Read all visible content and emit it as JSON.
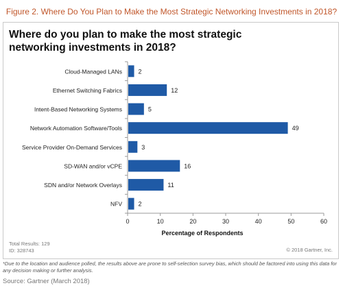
{
  "figure_title": "Figure 2. Where Do You Plan to Make the Most Strategic Networking Investments in 2018?",
  "chart_data": {
    "type": "bar",
    "orientation": "horizontal",
    "title_line1": "Where do you plan to make the most strategic",
    "title_line2": "networking investments in 2018?",
    "categories": [
      "Cloud-Managed LANs",
      "Ethernet Switching Fabrics",
      "Intent-Based Networking Systems",
      "Network Automation Software/Tools",
      "Service Provider On-Demand Services",
      "SD-WAN and/or vCPE",
      "SDN and/or Network Overlays",
      "NFV"
    ],
    "values": [
      2,
      12,
      5,
      49,
      3,
      16,
      11,
      2
    ],
    "xlabel": "Percentage of Respondents",
    "xlim": [
      0,
      60
    ],
    "xticks": [
      0,
      10,
      20,
      30,
      40,
      50,
      60
    ],
    "grid": false,
    "data_labels": true,
    "bar_color": "#1f5aa6"
  },
  "footer": {
    "total_results": "Total Results:  129",
    "id": "ID:  328743",
    "copyright": "© 2018 Gartner, Inc."
  },
  "note": "*Due to the location and audience polled, the results above are prone to self-selection survey bias, which should be factored into using this data for any decision making or further analysis.",
  "source": "Source: Gartner (March 2018)"
}
